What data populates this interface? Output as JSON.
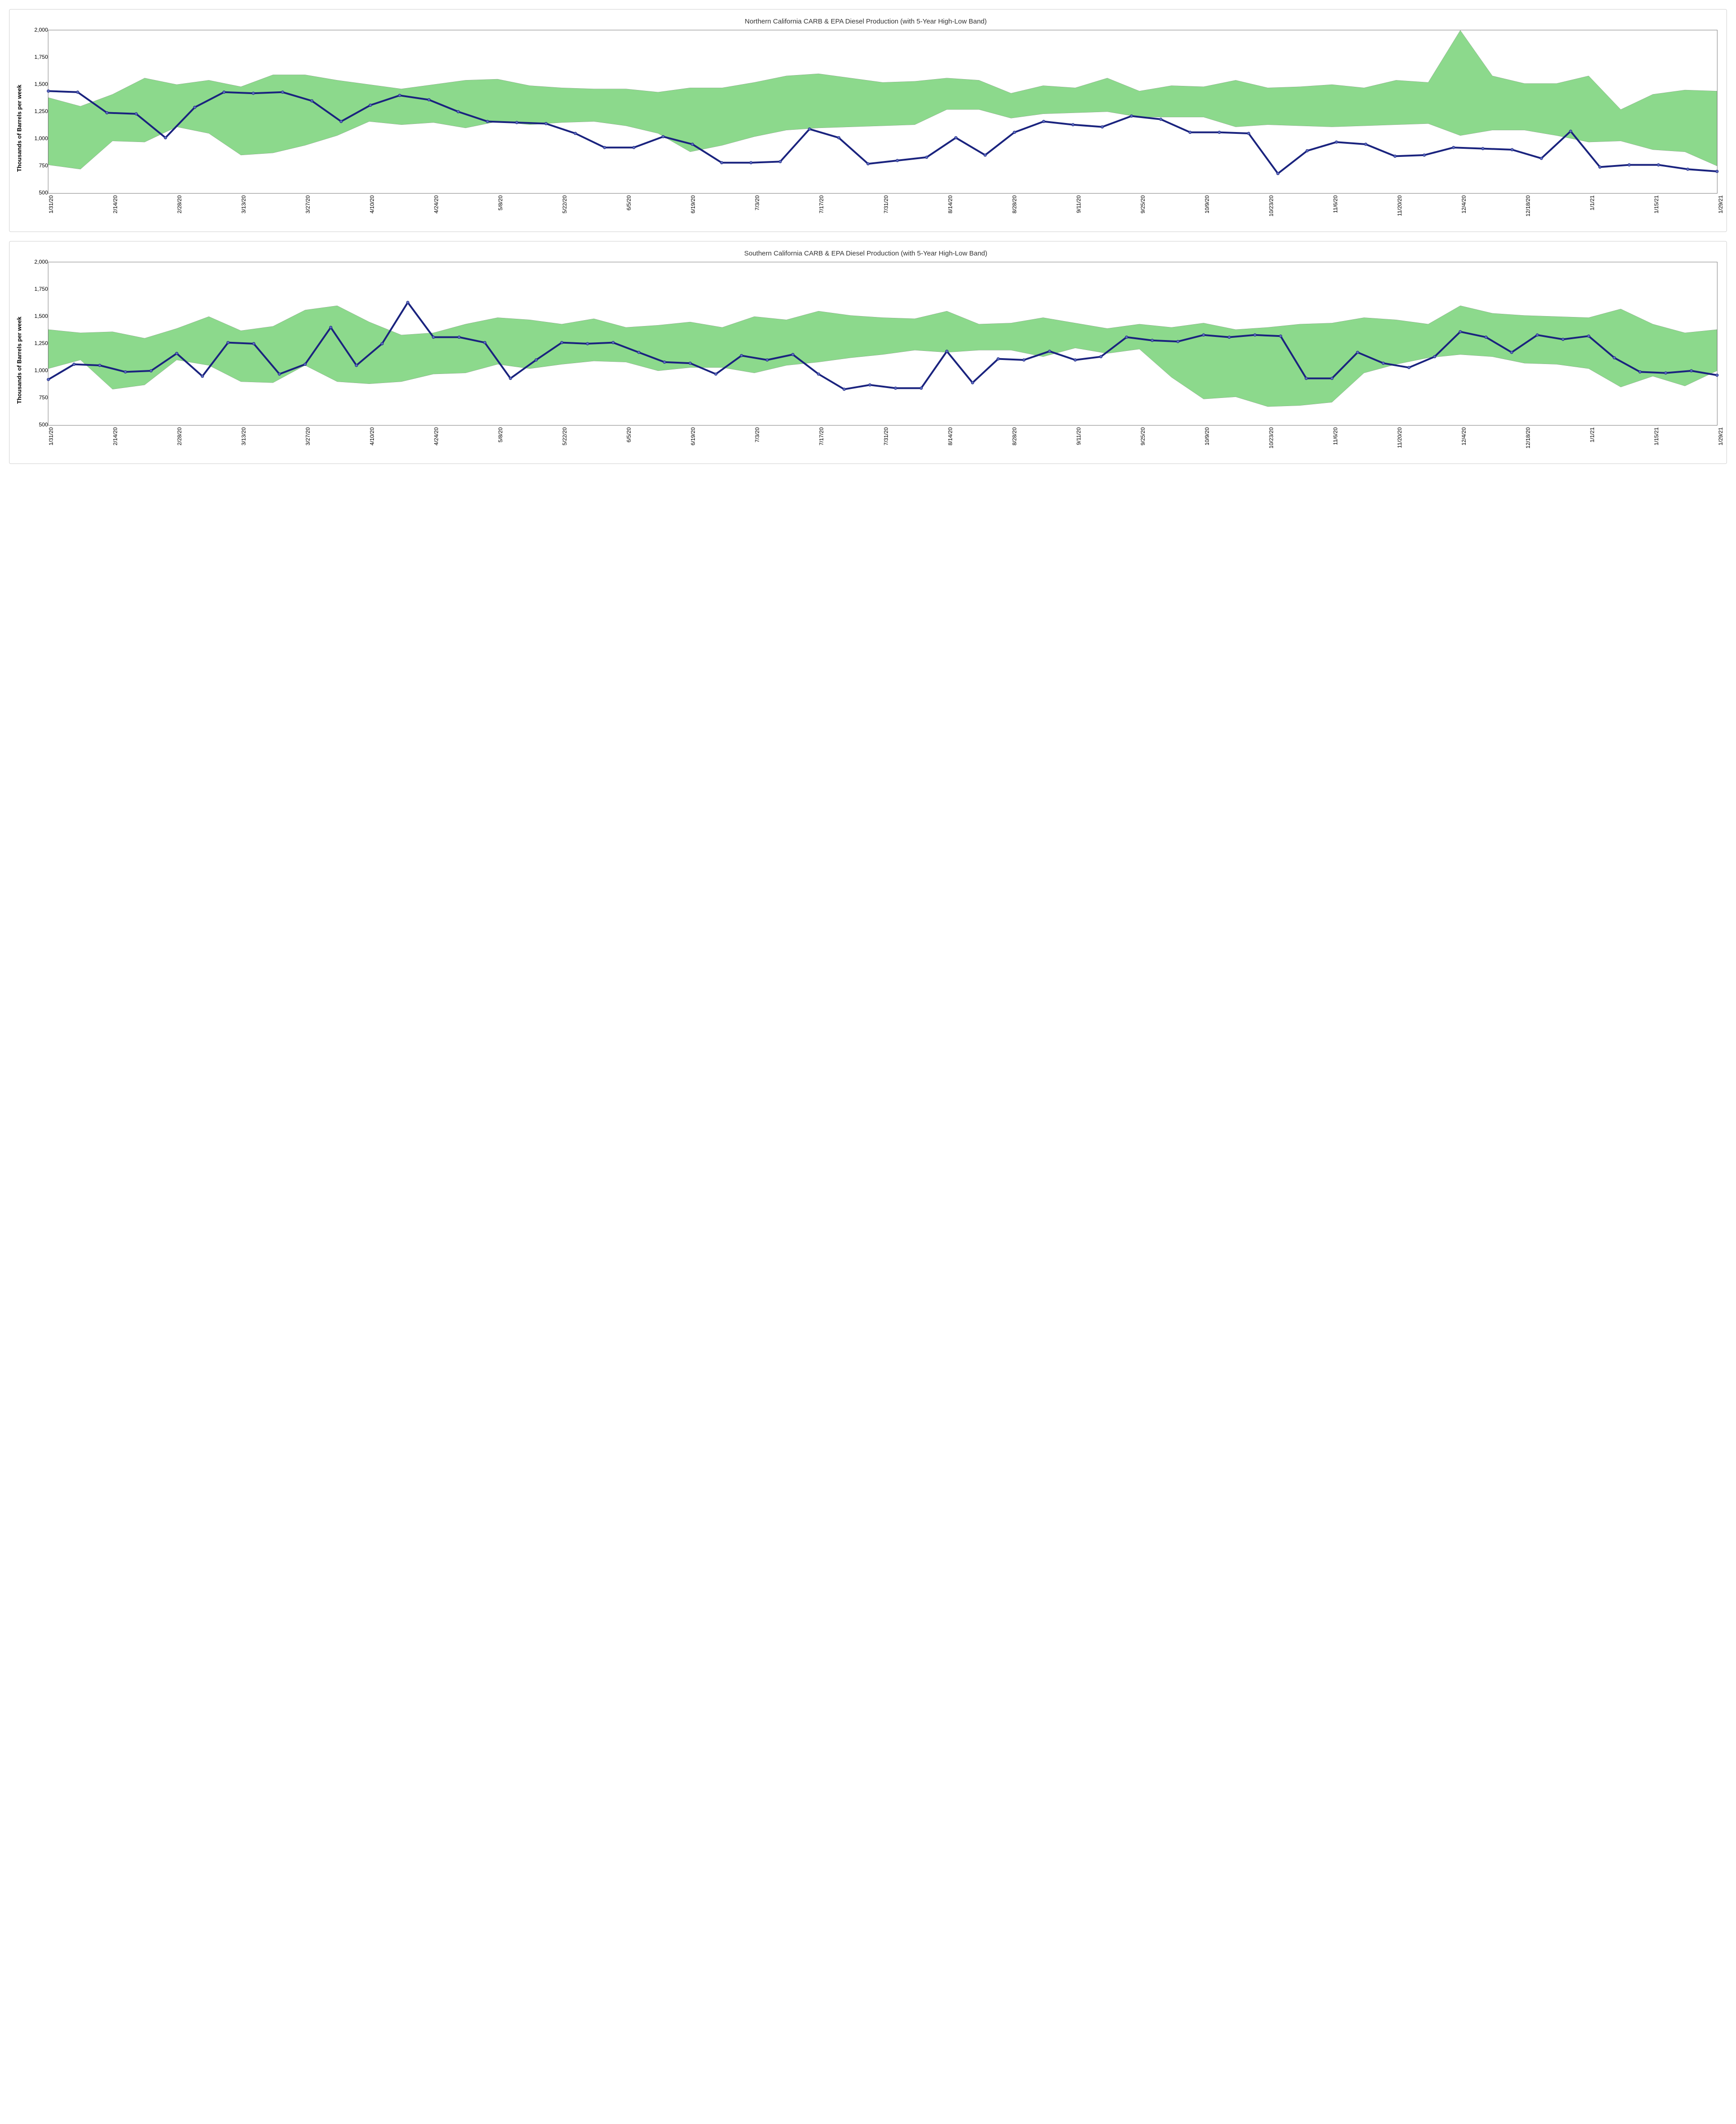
{
  "charts": [
    {
      "id": "northern",
      "title": "Northern California CARB & EPA Diesel Production (with 5-Year High-Low Band)",
      "ylabel": "Thousands of Barrels per week",
      "ylim": [
        500,
        2000
      ],
      "ytick_step": 250,
      "yticks": [
        "2,000",
        "1,750",
        "1,500",
        "1,250",
        "1,000",
        "750",
        "500"
      ],
      "xlabels": [
        "1/31/20",
        "2/14/20",
        "2/28/20",
        "3/13/20",
        "3/27/20",
        "4/10/20",
        "4/24/20",
        "5/8/20",
        "5/22/20",
        "6/5/20",
        "6/19/20",
        "7/3/20",
        "7/17/20",
        "7/31/20",
        "8/14/20",
        "8/28/20",
        "9/11/20",
        "9/25/20",
        "10/9/20",
        "10/23/20",
        "11/6/20",
        "11/20/20",
        "12/4/20",
        "12/18/20",
        "1/1/21",
        "1/15/21",
        "1/29/21"
      ],
      "band_high": [
        1380,
        1300,
        1410,
        1560,
        1500,
        1540,
        1480,
        1590,
        1590,
        1540,
        1500,
        1460,
        1500,
        1540,
        1550,
        1490,
        1470,
        1460,
        1460,
        1430,
        1470,
        1470,
        1520,
        1580,
        1600,
        1560,
        1520,
        1530,
        1560,
        1540,
        1420,
        1490,
        1470,
        1560,
        1440,
        1490,
        1480,
        1540,
        1470,
        1480,
        1500,
        1470,
        1540,
        1520,
        2000,
        1580,
        1510,
        1510,
        1580,
        1270,
        1410,
        1450,
        1440
      ],
      "band_low": [
        760,
        720,
        980,
        970,
        1110,
        1050,
        850,
        870,
        940,
        1030,
        1160,
        1130,
        1150,
        1100,
        1160,
        1130,
        1150,
        1160,
        1120,
        1050,
        880,
        940,
        1020,
        1080,
        1100,
        1110,
        1120,
        1130,
        1270,
        1270,
        1190,
        1230,
        1240,
        1250,
        1200,
        1200,
        1200,
        1110,
        1130,
        1120,
        1110,
        1120,
        1130,
        1140,
        1030,
        1080,
        1080,
        1030,
        970,
        980,
        900,
        880,
        750
      ],
      "line": [
        1440,
        1430,
        1240,
        1230,
        1010,
        1290,
        1430,
        1420,
        1430,
        1350,
        1160,
        1310,
        1400,
        1360,
        1250,
        1160,
        1150,
        1140,
        1050,
        920,
        920,
        1020,
        950,
        780,
        780,
        790,
        1090,
        1010,
        770,
        800,
        830,
        1010,
        850,
        1060,
        1160,
        1130,
        1110,
        1210,
        1180,
        1060,
        1060,
        1050,
        680,
        890,
        970,
        950,
        840,
        850,
        920,
        910,
        900,
        820,
        1070,
        740,
        760,
        760,
        720,
        700
      ],
      "colors": {
        "band_fill": "#8cd98c",
        "band_stroke": "#4a4a4a",
        "line_stroke": "#1a237e",
        "marker_fill": "#5c6bc0",
        "marker_stroke": "#1a237e",
        "plot_border": "#808080",
        "background": "#ffffff"
      },
      "line_width": 4,
      "marker_radius": 3,
      "title_fontsize": 15,
      "label_fontsize": 13,
      "tick_fontsize": 12
    },
    {
      "id": "southern",
      "title": "Southern California CARB & EPA Diesel Production (with 5-Year High-Low Band)",
      "ylabel": "Thousands of Barrels per week",
      "ylim": [
        500,
        2000
      ],
      "ytick_step": 250,
      "yticks": [
        "2,000",
        "1,750",
        "1,500",
        "1,250",
        "1,000",
        "750",
        "500"
      ],
      "xlabels": [
        "1/31/20",
        "2/14/20",
        "2/28/20",
        "3/13/20",
        "3/27/20",
        "4/10/20",
        "4/24/20",
        "5/8/20",
        "5/22/20",
        "6/5/20",
        "6/19/20",
        "7/3/20",
        "7/17/20",
        "7/31/20",
        "8/14/20",
        "8/28/20",
        "9/11/20",
        "9/25/20",
        "10/9/20",
        "10/23/20",
        "11/6/20",
        "11/20/20",
        "12/4/20",
        "12/18/20",
        "1/1/21",
        "1/15/21",
        "1/29/21"
      ],
      "band_high": [
        1380,
        1350,
        1360,
        1300,
        1390,
        1500,
        1370,
        1410,
        1560,
        1600,
        1450,
        1330,
        1350,
        1430,
        1490,
        1470,
        1430,
        1480,
        1400,
        1420,
        1450,
        1400,
        1500,
        1470,
        1550,
        1510,
        1490,
        1480,
        1550,
        1430,
        1440,
        1490,
        1440,
        1390,
        1430,
        1400,
        1440,
        1380,
        1400,
        1430,
        1440,
        1490,
        1470,
        1430,
        1600,
        1530,
        1510,
        1500,
        1490,
        1570,
        1430,
        1350,
        1380
      ],
      "band_low": [
        1020,
        1100,
        830,
        870,
        1100,
        1050,
        900,
        890,
        1050,
        900,
        880,
        900,
        970,
        980,
        1060,
        1020,
        1060,
        1090,
        1080,
        1000,
        1030,
        1030,
        980,
        1050,
        1080,
        1120,
        1150,
        1190,
        1170,
        1190,
        1190,
        1130,
        1210,
        1160,
        1200,
        940,
        740,
        760,
        670,
        680,
        710,
        980,
        1060,
        1120,
        1150,
        1130,
        1070,
        1060,
        1020,
        850,
        950,
        860,
        1000
      ],
      "line": [
        920,
        1060,
        1050,
        990,
        1000,
        1160,
        950,
        1260,
        1250,
        970,
        1060,
        1400,
        1050,
        1250,
        1630,
        1310,
        1310,
        1260,
        930,
        1100,
        1260,
        1250,
        1260,
        1170,
        1080,
        1070,
        970,
        1140,
        1100,
        1150,
        970,
        830,
        870,
        840,
        840,
        1180,
        890,
        1110,
        1100,
        1180,
        1100,
        1130,
        1310,
        1280,
        1270,
        1330,
        1310,
        1330,
        1320,
        930,
        930,
        1170,
        1070,
        1030,
        1130,
        1360,
        1310,
        1170,
        1330,
        1290,
        1320,
        1120,
        990,
        980,
        1000,
        960
      ],
      "colors": {
        "band_fill": "#8cd98c",
        "band_stroke": "#4a4a4a",
        "line_stroke": "#1a237e",
        "marker_fill": "#5c6bc0",
        "marker_stroke": "#1a237e",
        "plot_border": "#808080",
        "background": "#ffffff"
      },
      "line_width": 4,
      "marker_radius": 3,
      "title_fontsize": 15,
      "label_fontsize": 13,
      "tick_fontsize": 12
    }
  ]
}
